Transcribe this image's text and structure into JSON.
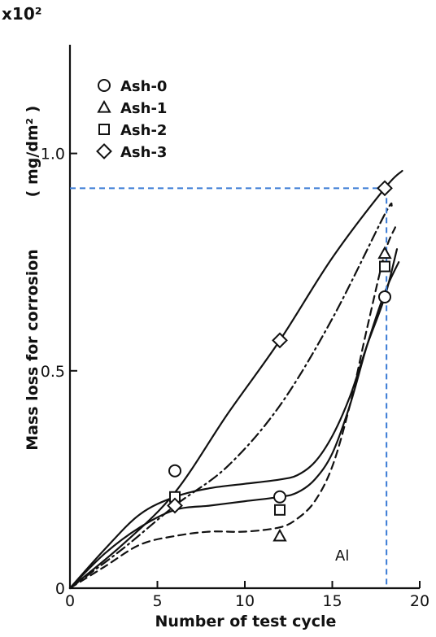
{
  "chart_data": {
    "type": "line",
    "xlabel": "Number of test cycle",
    "ylabel": "Mass loss for corrosion",
    "ylabel_unit": "( mg/dm² )",
    "y_multiplier": "x10²",
    "xlim": [
      0,
      20
    ],
    "ylim": [
      0,
      1.25
    ],
    "x_ticks": [
      0,
      5,
      10,
      15,
      20
    ],
    "y_ticks": [
      {
        "value": 0,
        "label": "0"
      },
      {
        "value": 0.5,
        "label": "0.5"
      },
      {
        "value": 1.0,
        "label": "1.0"
      }
    ],
    "grid": false,
    "legend_position": "top-left",
    "annotation": "Al",
    "series": [
      {
        "name": "Ash-0",
        "marker": "circle",
        "line_style": "solid",
        "points": [
          [
            6,
            0.27
          ],
          [
            12,
            0.21
          ],
          [
            18,
            0.67
          ]
        ],
        "curve": [
          [
            0,
            0
          ],
          [
            2,
            0.09
          ],
          [
            4,
            0.17
          ],
          [
            6,
            0.21
          ],
          [
            8,
            0.23
          ],
          [
            10,
            0.24
          ],
          [
            12,
            0.25
          ],
          [
            13,
            0.26
          ],
          [
            14,
            0.29
          ],
          [
            15,
            0.35
          ],
          [
            16,
            0.44
          ],
          [
            17,
            0.56
          ],
          [
            18,
            0.67
          ],
          [
            18.7,
            0.78
          ]
        ]
      },
      {
        "name": "Ash-1",
        "marker": "triangle",
        "line_style": "dashed",
        "points": [
          [
            6,
            0.2
          ],
          [
            12,
            0.12
          ],
          [
            18,
            0.77
          ]
        ],
        "curve": [
          [
            0,
            0
          ],
          [
            2,
            0.05
          ],
          [
            4,
            0.1
          ],
          [
            6,
            0.12
          ],
          [
            8,
            0.13
          ],
          [
            10,
            0.13
          ],
          [
            12,
            0.14
          ],
          [
            13,
            0.16
          ],
          [
            14,
            0.2
          ],
          [
            15,
            0.28
          ],
          [
            16,
            0.42
          ],
          [
            17,
            0.6
          ],
          [
            18,
            0.77
          ],
          [
            18.6,
            0.83
          ]
        ]
      },
      {
        "name": "Ash-2",
        "marker": "square",
        "line_style": "solid",
        "points": [
          [
            6,
            0.21
          ],
          [
            12,
            0.18
          ],
          [
            18,
            0.74
          ]
        ],
        "curve": [
          [
            0,
            0
          ],
          [
            2,
            0.08
          ],
          [
            4,
            0.14
          ],
          [
            6,
            0.18
          ],
          [
            8,
            0.19
          ],
          [
            10,
            0.2
          ],
          [
            12,
            0.21
          ],
          [
            13,
            0.22
          ],
          [
            14,
            0.25
          ],
          [
            15,
            0.31
          ],
          [
            16,
            0.42
          ],
          [
            17,
            0.56
          ],
          [
            18,
            0.68
          ],
          [
            18.8,
            0.75
          ]
        ]
      },
      {
        "name": "Ash-3",
        "marker": "diamond",
        "line_style": "solid",
        "points": [
          [
            6,
            0.19
          ],
          [
            12,
            0.57
          ],
          [
            18,
            0.92
          ]
        ],
        "curve": [
          [
            0,
            0
          ],
          [
            3,
            0.1
          ],
          [
            6,
            0.22
          ],
          [
            9,
            0.4
          ],
          [
            12,
            0.57
          ],
          [
            15,
            0.76
          ],
          [
            18,
            0.92
          ],
          [
            19,
            0.96
          ]
        ]
      },
      {
        "name": "",
        "marker": "none",
        "line_style": "dash-dot",
        "points": [],
        "curve": [
          [
            0,
            0
          ],
          [
            3,
            0.09
          ],
          [
            6,
            0.19
          ],
          [
            9,
            0.28
          ],
          [
            12,
            0.42
          ],
          [
            15,
            0.62
          ],
          [
            18,
            0.86
          ],
          [
            18.4,
            0.88
          ]
        ]
      }
    ],
    "reference_lines": {
      "color": "#3a7bd5",
      "style": "dashed",
      "horizontal_y": 0.92,
      "vertical_x": 18.1
    }
  }
}
